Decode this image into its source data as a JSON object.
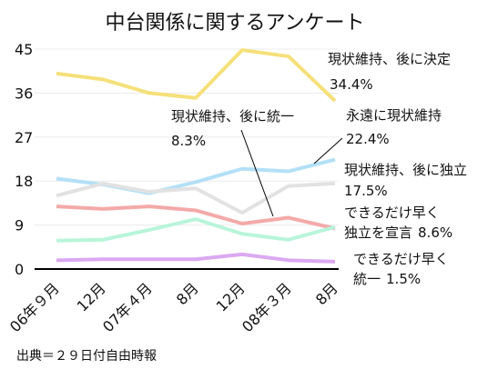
{
  "chart_data": {
    "type": "line",
    "title": "中台関係に関するアンケート",
    "categories": [
      "06年９月",
      "12月",
      "07年４月",
      "8月",
      "12月",
      "08年３月",
      "8月"
    ],
    "ylim": [
      0,
      45
    ],
    "yticks": [
      0,
      9,
      18,
      27,
      36,
      45
    ],
    "grid": true,
    "series": [
      {
        "name": "現状維持、後に決定",
        "color": "#f5e07a",
        "values": [
          40,
          38.8,
          36,
          35,
          44.8,
          43.5,
          34.4
        ],
        "value_labels": [
          "",
          "",
          "",
          "",
          "",
          "",
          "34.4%"
        ]
      },
      {
        "name": "永遠に現状維持",
        "color": "#b3e0f7",
        "values": [
          18.5,
          17.3,
          15.5,
          17.8,
          20.5,
          20,
          22.4
        ],
        "value_labels": [
          "",
          "",
          "",
          "",
          "",
          "",
          "22.4%"
        ]
      },
      {
        "name": "現状維持、後に独立",
        "color": "#e2e2e2",
        "values": [
          15,
          17.5,
          15.8,
          16.5,
          11.5,
          17,
          17.5
        ],
        "value_labels": [
          "",
          "",
          "",
          "",
          "",
          "",
          "17.5%"
        ]
      },
      {
        "name": "現状維持、後に統一",
        "color": "#f4a9a9",
        "values": [
          12.8,
          12.3,
          12.8,
          12,
          9.3,
          10.5,
          8.3
        ],
        "value_labels": [
          "",
          "",
          "",
          "",
          "",
          "",
          "8.3%"
        ]
      },
      {
        "name": "できるだけ早く\n独立を宣言",
        "color": "#b8f5da",
        "values": [
          5.8,
          6,
          8,
          10.2,
          7.2,
          6,
          8.6
        ],
        "value_labels": [
          "",
          "",
          "",
          "",
          "",
          "",
          "8.6%"
        ]
      },
      {
        "name": "できるだけ早く\n統一",
        "color": "#dba8f2",
        "values": [
          1.8,
          2,
          2,
          2,
          3,
          1.8,
          1.5
        ],
        "value_labels": [
          "",
          "",
          "",
          "",
          "",
          "",
          "1.5%"
        ]
      }
    ],
    "source": "出典＝２９日付自由時報"
  }
}
